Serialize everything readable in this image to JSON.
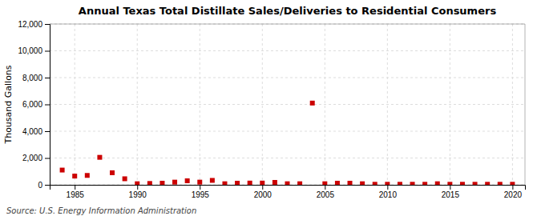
{
  "chart_data": {
    "type": "scatter",
    "title": "Annual Texas Total Distillate Sales/Deliveries to Residential Consumers",
    "ylabel": "Thousand Gallons",
    "annotations": [
      "Source: U.S. Energy Information Administration"
    ],
    "x": [
      1984,
      1985,
      1986,
      1987,
      1988,
      1989,
      1990,
      1991,
      1992,
      1993,
      1994,
      1995,
      1996,
      1997,
      1998,
      1999,
      2000,
      2001,
      2002,
      2003,
      2004,
      2005,
      2006,
      2007,
      2008,
      2009,
      2010,
      2011,
      2012,
      2013,
      2014,
      2015,
      2016,
      2017,
      2018,
      2019,
      2020
    ],
    "values": [
      1100,
      650,
      700,
      2050,
      900,
      450,
      80,
      100,
      120,
      200,
      300,
      200,
      330,
      80,
      120,
      130,
      130,
      180,
      80,
      80,
      6100,
      80,
      120,
      120,
      80,
      40,
      40,
      40,
      40,
      40,
      80,
      40,
      40,
      40,
      40,
      40,
      40
    ],
    "color": "#cc0000",
    "marker": "square",
    "xlim": [
      1983,
      2021
    ],
    "ylim": [
      0,
      12000
    ],
    "xticks": [
      1985,
      1990,
      1995,
      2000,
      2005,
      2010,
      2015,
      2020
    ],
    "yticks": [
      0,
      {
        "value": 2000,
        "label": "2,000"
      },
      {
        "value": 4000,
        "label": "4,000"
      },
      {
        "value": 6000,
        "label": "6,000"
      },
      {
        "value": 8000,
        "label": "8,000"
      },
      {
        "value": 10000,
        "label": "10,000"
      },
      {
        "value": 12000,
        "label": "12,000"
      }
    ],
    "grid": true
  }
}
